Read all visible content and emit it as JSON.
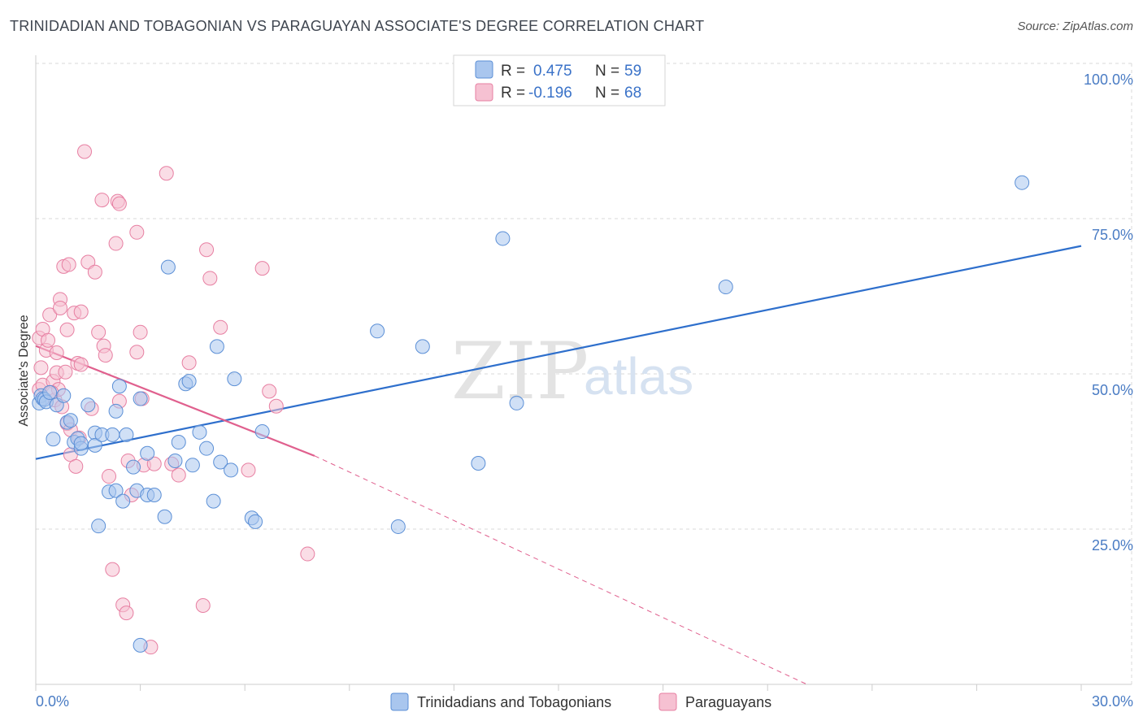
{
  "title": "TRINIDADIAN AND TOBAGONIAN VS PARAGUAYAN ASSOCIATE'S DEGREE CORRELATION CHART",
  "source": "Source: ZipAtlas.com",
  "watermark": {
    "zip": "ZIP",
    "atlas": "atlas"
  },
  "legend": {
    "series1": {
      "r_label": "R =",
      "r_value": "0.475",
      "n_label": "N =",
      "n_value": "59"
    },
    "series2": {
      "r_label": "R =",
      "r_value": "-0.196",
      "n_label": "N =",
      "n_value": "68"
    }
  },
  "colors": {
    "blue_fill": "#a9c6ee",
    "blue_stroke": "#5b8fd6",
    "blue_line": "#2e6fcc",
    "pink_fill": "#f6c1d2",
    "pink_stroke": "#e77fa2",
    "pink_line": "#e0608e",
    "grid": "#d8d8d8",
    "axis": "#cccccc"
  },
  "chart_data": {
    "type": "scatter",
    "title": "TRINIDADIAN AND TOBAGONIAN VS PARAGUAYAN ASSOCIATE'S DEGREE CORRELATION CHART",
    "xlabel": "",
    "ylabel": "Associate's Degree",
    "xlim": [
      0,
      30
    ],
    "ylim": [
      0,
      105
    ],
    "x_tick_labels": [
      "0.0%",
      "30.0%"
    ],
    "y_ticks": [
      25,
      50,
      75,
      100
    ],
    "y_tick_labels": [
      "25.0%",
      "50.0%",
      "75.0%",
      "100.0%"
    ],
    "grid": true,
    "series": [
      {
        "name": "Trinidadians and Tobagonians",
        "color": "blue",
        "R": 0.475,
        "N": 59,
        "trend": {
          "x": [
            0,
            30
          ],
          "y": [
            36.3,
            70.6
          ],
          "dashed_beyond": null
        },
        "points": [
          [
            0.1,
            45.3
          ],
          [
            0.15,
            46.5
          ],
          [
            0.2,
            46.0
          ],
          [
            0.25,
            45.9
          ],
          [
            0.3,
            45.5
          ],
          [
            0.4,
            47.0
          ],
          [
            0.5,
            39.5
          ],
          [
            0.6,
            45.0
          ],
          [
            0.8,
            46.5
          ],
          [
            0.9,
            42.2
          ],
          [
            1.0,
            42.5
          ],
          [
            1.1,
            39.0
          ],
          [
            1.2,
            39.6
          ],
          [
            1.3,
            38.0
          ],
          [
            1.5,
            45.0
          ],
          [
            1.7,
            40.5
          ],
          [
            1.7,
            38.5
          ],
          [
            1.8,
            25.5
          ],
          [
            1.9,
            40.2
          ],
          [
            2.1,
            31.0
          ],
          [
            2.2,
            40.2
          ],
          [
            2.3,
            31.2
          ],
          [
            2.3,
            44.0
          ],
          [
            2.4,
            48.0
          ],
          [
            2.5,
            29.5
          ],
          [
            2.6,
            40.2
          ],
          [
            2.8,
            35.0
          ],
          [
            2.9,
            31.2
          ],
          [
            3.0,
            46.0
          ],
          [
            3.2,
            30.5
          ],
          [
            3.2,
            37.2
          ],
          [
            3.4,
            30.5
          ],
          [
            3.7,
            27.0
          ],
          [
            3.8,
            67.2
          ],
          [
            4.0,
            36.0
          ],
          [
            4.1,
            39.0
          ],
          [
            4.3,
            48.4
          ],
          [
            4.4,
            48.8
          ],
          [
            4.5,
            35.3
          ],
          [
            4.7,
            40.6
          ],
          [
            4.9,
            38.0
          ],
          [
            5.1,
            29.5
          ],
          [
            5.2,
            54.4
          ],
          [
            5.3,
            35.8
          ],
          [
            5.6,
            34.5
          ],
          [
            5.7,
            49.2
          ],
          [
            6.2,
            26.8
          ],
          [
            6.3,
            26.2
          ],
          [
            6.5,
            40.7
          ],
          [
            9.8,
            56.9
          ],
          [
            10.4,
            25.4
          ],
          [
            11.1,
            54.4
          ],
          [
            12.7,
            35.6
          ],
          [
            13.4,
            71.8
          ],
          [
            13.8,
            45.3
          ],
          [
            19.8,
            64.0
          ],
          [
            28.3,
            80.8
          ],
          [
            3.0,
            6.3
          ],
          [
            1.3,
            38.8
          ]
        ]
      },
      {
        "name": "Paraguayans",
        "color": "pink",
        "R": -0.196,
        "N": 68,
        "trend": {
          "x": [
            0,
            8.0
          ],
          "y": [
            54.5,
            36.8
          ],
          "dashed_to": [
            30,
            -20.5
          ]
        },
        "points": [
          [
            0.1,
            55.8
          ],
          [
            0.1,
            47.5
          ],
          [
            0.15,
            51.0
          ],
          [
            0.2,
            57.2
          ],
          [
            0.2,
            48.2
          ],
          [
            0.3,
            53.8
          ],
          [
            0.35,
            55.4
          ],
          [
            0.4,
            59.5
          ],
          [
            0.5,
            48.8
          ],
          [
            0.55,
            45.8
          ],
          [
            0.6,
            53.4
          ],
          [
            0.6,
            50.2
          ],
          [
            0.65,
            47.5
          ],
          [
            0.7,
            62.0
          ],
          [
            0.7,
            60.6
          ],
          [
            0.75,
            44.7
          ],
          [
            0.8,
            67.3
          ],
          [
            0.85,
            50.3
          ],
          [
            0.9,
            42.0
          ],
          [
            0.9,
            57.1
          ],
          [
            0.95,
            67.6
          ],
          [
            1.0,
            41.0
          ],
          [
            1.0,
            37.0
          ],
          [
            1.1,
            59.8
          ],
          [
            1.15,
            35.1
          ],
          [
            1.2,
            51.7
          ],
          [
            1.25,
            39.7
          ],
          [
            1.3,
            51.5
          ],
          [
            1.3,
            60.0
          ],
          [
            1.4,
            85.8
          ],
          [
            1.5,
            68.0
          ],
          [
            1.6,
            44.4
          ],
          [
            1.7,
            66.4
          ],
          [
            1.8,
            56.7
          ],
          [
            1.9,
            78.0
          ],
          [
            1.95,
            54.5
          ],
          [
            2.0,
            53.0
          ],
          [
            2.1,
            33.5
          ],
          [
            2.2,
            18.5
          ],
          [
            2.3,
            71.0
          ],
          [
            2.35,
            77.8
          ],
          [
            2.4,
            77.4
          ],
          [
            2.4,
            45.6
          ],
          [
            2.5,
            12.8
          ],
          [
            2.6,
            11.5
          ],
          [
            2.65,
            36.0
          ],
          [
            2.75,
            30.5
          ],
          [
            2.9,
            72.8
          ],
          [
            2.9,
            53.5
          ],
          [
            3.0,
            56.7
          ],
          [
            3.05,
            46.0
          ],
          [
            3.1,
            35.3
          ],
          [
            3.3,
            6.0
          ],
          [
            3.4,
            35.5
          ],
          [
            3.75,
            82.3
          ],
          [
            3.9,
            35.5
          ],
          [
            4.1,
            33.7
          ],
          [
            4.4,
            51.8
          ],
          [
            4.8,
            12.7
          ],
          [
            4.9,
            70.0
          ],
          [
            5.0,
            65.4
          ],
          [
            5.3,
            57.5
          ],
          [
            6.1,
            34.5
          ],
          [
            6.5,
            67.0
          ],
          [
            6.7,
            47.2
          ],
          [
            6.9,
            44.8
          ],
          [
            7.8,
            21.0
          ],
          [
            0.45,
            47.0
          ]
        ]
      }
    ]
  },
  "bottom_legend": {
    "item1": "Trinidadians and Tobagonians",
    "item2": "Paraguayans"
  }
}
